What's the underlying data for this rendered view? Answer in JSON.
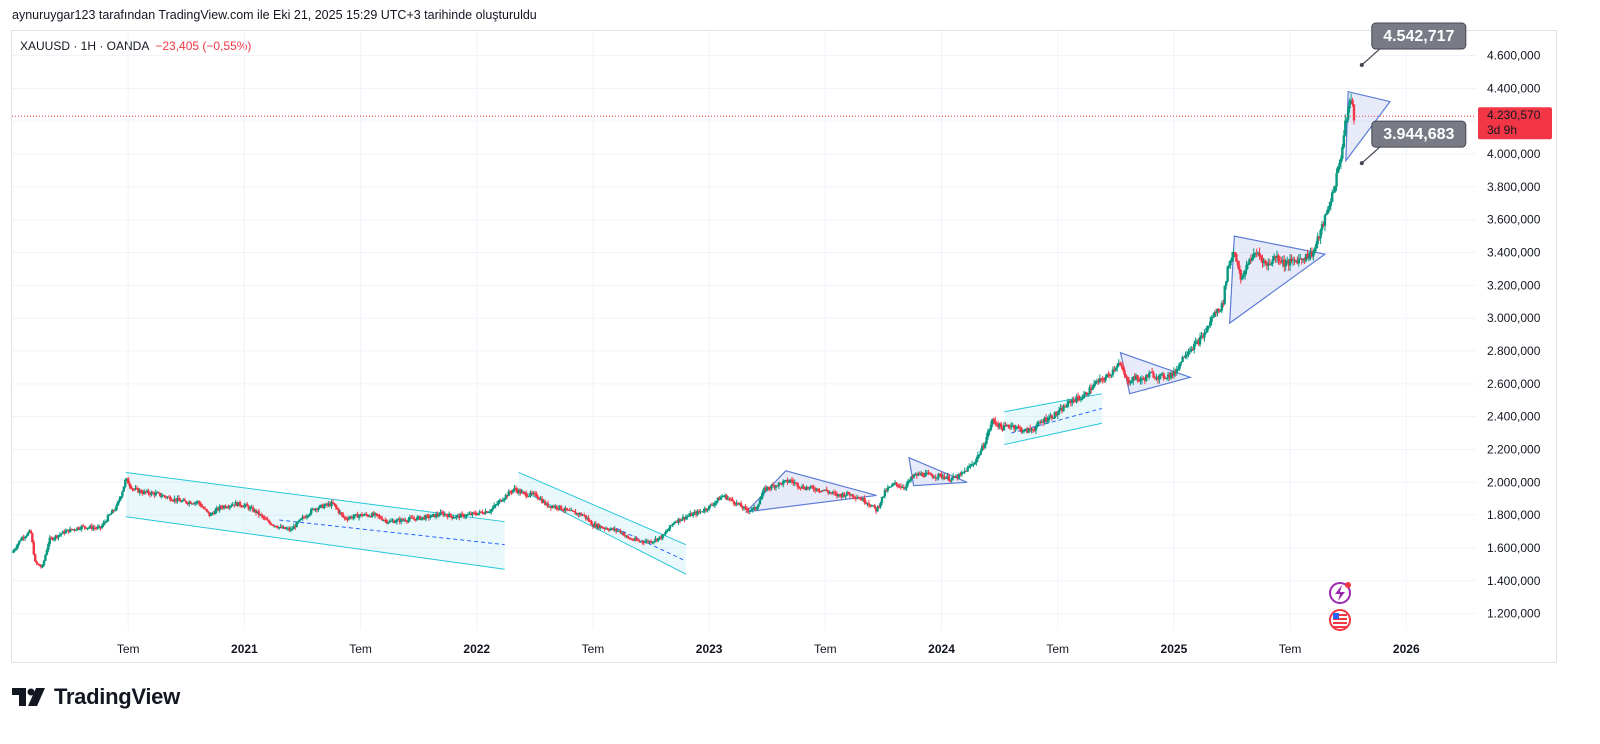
{
  "caption": "aynuruygar123 tarafından TradingView.com ile Eki 21, 2025 15:29 UTC+3 tarihinde oluşturuldu",
  "legend": {
    "symbol": "XAUUSD · 1H · OANDA",
    "change": "−23,405 (−0,55%)"
  },
  "brand": {
    "name": "TradingView",
    "logo_icon": "tradingview-logo-icon"
  },
  "colors": {
    "up": "#089981",
    "down": "#f23645",
    "channel": "#26c6da",
    "triangle": "#5b7bd5",
    "price": "#f23645"
  },
  "side_icons": [
    "lightning-icon",
    "us-flag-icon"
  ],
  "chart_data": {
    "type": "candlestick",
    "symbol": "XAUUSD",
    "ylim": [
      1100000,
      4750000
    ],
    "y_ticks": [
      1200000,
      1400000,
      1600000,
      1800000,
      2000000,
      2200000,
      2400000,
      2600000,
      2800000,
      3000000,
      3200000,
      3400000,
      3600000,
      3800000,
      4000000,
      4200000,
      4400000,
      4600000
    ],
    "y_tick_labels": [
      "1.200,000",
      "1.400,000",
      "1.600,000",
      "1.800,000",
      "2.000,000",
      "2.200,000",
      "2.400,000",
      "2.600,000",
      "2.800,000",
      "3.000,000",
      "3.200,000",
      "3.400,000",
      "3.600,000",
      "3.800,000",
      "4.000,000",
      "4.200,000",
      "4.400,000",
      "4.600,000"
    ],
    "x_ticks": [
      {
        "label": "Tem",
        "t": 2020.5,
        "year": false
      },
      {
        "label": "2021",
        "t": 2021.0,
        "year": true
      },
      {
        "label": "Tem",
        "t": 2021.5,
        "year": false
      },
      {
        "label": "2022",
        "t": 2022.0,
        "year": true
      },
      {
        "label": "Tem",
        "t": 2022.5,
        "year": false
      },
      {
        "label": "2023",
        "t": 2023.0,
        "year": true
      },
      {
        "label": "Tem",
        "t": 2023.5,
        "year": false
      },
      {
        "label": "2024",
        "t": 2024.0,
        "year": true
      },
      {
        "label": "Tem",
        "t": 2024.5,
        "year": false
      },
      {
        "label": "2025",
        "t": 2025.0,
        "year": true
      },
      {
        "label": "Tem",
        "t": 2025.5,
        "year": false
      },
      {
        "label": "2026",
        "t": 2026.0,
        "year": true
      }
    ],
    "current_price": {
      "value": 4230570,
      "label": "4.230,570",
      "countdown": "3d 9h"
    },
    "annotations": [
      {
        "label": "4.542,717",
        "value": 4542717,
        "t": 2025.8
      },
      {
        "label": "3.944,683",
        "value": 3944683,
        "t": 2025.8
      }
    ],
    "close_path": [
      [
        2020.0,
        1570000
      ],
      [
        2020.04,
        1660000
      ],
      [
        2020.08,
        1700000
      ],
      [
        2020.1,
        1510000
      ],
      [
        2020.13,
        1480000
      ],
      [
        2020.16,
        1650000
      ],
      [
        2020.23,
        1700000
      ],
      [
        2020.3,
        1730000
      ],
      [
        2020.38,
        1720000
      ],
      [
        2020.42,
        1800000
      ],
      [
        2020.45,
        1850000
      ],
      [
        2020.475,
        1950000
      ],
      [
        2020.49,
        2020000
      ],
      [
        2020.52,
        1960000
      ],
      [
        2020.56,
        1940000
      ],
      [
        2020.62,
        1930000
      ],
      [
        2020.68,
        1905000
      ],
      [
        2020.74,
        1880000
      ],
      [
        2020.8,
        1880000
      ],
      [
        2020.85,
        1800000
      ],
      [
        2020.9,
        1850000
      ],
      [
        2020.96,
        1870000
      ],
      [
        2021.0,
        1860000
      ],
      [
        2021.05,
        1820000
      ],
      [
        2021.1,
        1760000
      ],
      [
        2021.16,
        1720000
      ],
      [
        2021.2,
        1710000
      ],
      [
        2021.25,
        1780000
      ],
      [
        2021.3,
        1840000
      ],
      [
        2021.38,
        1870000
      ],
      [
        2021.43,
        1780000
      ],
      [
        2021.5,
        1800000
      ],
      [
        2021.56,
        1800000
      ],
      [
        2021.62,
        1760000
      ],
      [
        2021.68,
        1770000
      ],
      [
        2021.74,
        1780000
      ],
      [
        2021.8,
        1790000
      ],
      [
        2021.85,
        1810000
      ],
      [
        2021.9,
        1790000
      ],
      [
        2021.96,
        1800000
      ],
      [
        2022.0,
        1810000
      ],
      [
        2022.06,
        1830000
      ],
      [
        2022.11,
        1900000
      ],
      [
        2022.16,
        1960000
      ],
      [
        2022.2,
        1930000
      ],
      [
        2022.26,
        1920000
      ],
      [
        2022.3,
        1860000
      ],
      [
        2022.35,
        1850000
      ],
      [
        2022.4,
        1820000
      ],
      [
        2022.46,
        1800000
      ],
      [
        2022.5,
        1740000
      ],
      [
        2022.56,
        1720000
      ],
      [
        2022.62,
        1700000
      ],
      [
        2022.65,
        1660000
      ],
      [
        2022.7,
        1640000
      ],
      [
        2022.75,
        1640000
      ],
      [
        2022.8,
        1670000
      ],
      [
        2022.85,
        1760000
      ],
      [
        2022.9,
        1790000
      ],
      [
        2022.96,
        1820000
      ],
      [
        2023.0,
        1850000
      ],
      [
        2023.06,
        1920000
      ],
      [
        2023.12,
        1870000
      ],
      [
        2023.16,
        1830000
      ],
      [
        2023.2,
        1840000
      ],
      [
        2023.24,
        1960000
      ],
      [
        2023.3,
        1990000
      ],
      [
        2023.35,
        2010000
      ],
      [
        2023.4,
        1970000
      ],
      [
        2023.46,
        1960000
      ],
      [
        2023.5,
        1950000
      ],
      [
        2023.55,
        1920000
      ],
      [
        2023.6,
        1930000
      ],
      [
        2023.64,
        1910000
      ],
      [
        2023.68,
        1880000
      ],
      [
        2023.72,
        1830000
      ],
      [
        2023.76,
        1950000
      ],
      [
        2023.8,
        1990000
      ],
      [
        2023.84,
        1970000
      ],
      [
        2023.88,
        2040000
      ],
      [
        2023.92,
        2050000
      ],
      [
        2023.96,
        2040000
      ],
      [
        2024.0,
        2040000
      ],
      [
        2024.04,
        2020000
      ],
      [
        2024.08,
        2040000
      ],
      [
        2024.14,
        2120000
      ],
      [
        2024.18,
        2220000
      ],
      [
        2024.22,
        2380000
      ],
      [
        2024.26,
        2330000
      ],
      [
        2024.3,
        2350000
      ],
      [
        2024.36,
        2310000
      ],
      [
        2024.4,
        2330000
      ],
      [
        2024.44,
        2380000
      ],
      [
        2024.5,
        2420000
      ],
      [
        2024.56,
        2500000
      ],
      [
        2024.61,
        2520000
      ],
      [
        2024.66,
        2600000
      ],
      [
        2024.72,
        2650000
      ],
      [
        2024.76,
        2730000
      ],
      [
        2024.78,
        2680000
      ],
      [
        2024.8,
        2610000
      ],
      [
        2024.83,
        2640000
      ],
      [
        2024.86,
        2620000
      ],
      [
        2024.9,
        2660000
      ],
      [
        2024.94,
        2640000
      ],
      [
        2025.0,
        2660000
      ],
      [
        2025.05,
        2790000
      ],
      [
        2025.1,
        2850000
      ],
      [
        2025.13,
        2900000
      ],
      [
        2025.17,
        3020000
      ],
      [
        2025.21,
        3080000
      ],
      [
        2025.23,
        3300000
      ],
      [
        2025.26,
        3420000
      ],
      [
        2025.29,
        3220000
      ],
      [
        2025.32,
        3350000
      ],
      [
        2025.36,
        3400000
      ],
      [
        2025.4,
        3320000
      ],
      [
        2025.44,
        3380000
      ],
      [
        2025.48,
        3330000
      ],
      [
        2025.52,
        3350000
      ],
      [
        2025.56,
        3370000
      ],
      [
        2025.6,
        3400000
      ],
      [
        2025.63,
        3520000
      ],
      [
        2025.66,
        3650000
      ],
      [
        2025.69,
        3800000
      ],
      [
        2025.72,
        4000000
      ],
      [
        2025.74,
        4200000
      ],
      [
        2025.76,
        4350000
      ],
      [
        2025.775,
        4230570
      ]
    ],
    "channels": [
      {
        "name": "descending-channel-2020-2022",
        "upper": [
          [
            2020.49,
            2060000
          ],
          [
            2022.12,
            1760000
          ]
        ],
        "lower": [
          [
            2020.49,
            1790000
          ],
          [
            2022.12,
            1470000
          ]
        ],
        "mid": [
          [
            2021.15,
            1770000
          ],
          [
            2022.12,
            1620000
          ]
        ]
      },
      {
        "name": "descending-channel-2022",
        "upper": [
          [
            2022.18,
            2060000
          ],
          [
            2022.9,
            1620000
          ]
        ],
        "lower": [
          [
            2022.18,
            1960000
          ],
          [
            2022.9,
            1440000
          ]
        ],
        "mid": [
          [
            2022.6,
            1720000
          ],
          [
            2022.9,
            1520000
          ]
        ]
      },
      {
        "name": "ascending-channel-2024",
        "upper": [
          [
            2024.27,
            2430000
          ],
          [
            2024.69,
            2540000
          ]
        ],
        "lower": [
          [
            2024.27,
            2230000
          ],
          [
            2024.69,
            2360000
          ]
        ],
        "mid": [
          [
            2024.3,
            2300000
          ],
          [
            2024.69,
            2450000
          ]
        ]
      }
    ],
    "triangles": [
      {
        "name": "symmetrical-triangle-2023",
        "points": [
          [
            2023.16,
            1820000
          ],
          [
            2023.33,
            2070000
          ],
          [
            2023.72,
            1920000
          ]
        ]
      },
      {
        "name": "triangle-late-2023",
        "points": [
          [
            2023.86,
            2150000
          ],
          [
            2023.88,
            1980000
          ],
          [
            2024.11,
            2000000
          ]
        ]
      },
      {
        "name": "triangle-late-2024",
        "points": [
          [
            2024.77,
            2790000
          ],
          [
            2024.81,
            2540000
          ],
          [
            2025.07,
            2640000
          ]
        ]
      },
      {
        "name": "triangle-2025",
        "points": [
          [
            2025.26,
            3500000
          ],
          [
            2025.24,
            2970000
          ],
          [
            2025.65,
            3390000
          ]
        ]
      },
      {
        "name": "triangle-2025-top",
        "points": [
          [
            2025.75,
            4380000
          ],
          [
            2025.74,
            3960000
          ],
          [
            2025.93,
            4320000
          ]
        ]
      }
    ]
  }
}
